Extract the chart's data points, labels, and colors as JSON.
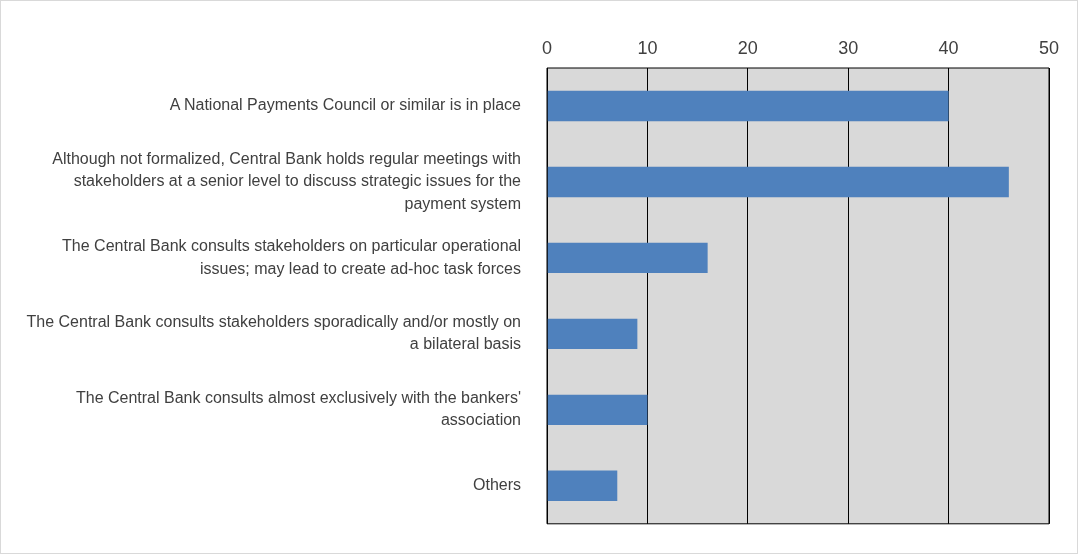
{
  "chart_data": {
    "type": "bar",
    "orientation": "horizontal",
    "categories": [
      "A National Payments Council or similar is in place",
      "Although not formalized, Central Bank holds regular meetings with stakeholders at a senior level to discuss strategic issues for the payment system",
      "The Central Bank consults stakeholders on particular operational issues; may lead to create ad-hoc task forces",
      "The Central Bank consults stakeholders sporadically and/or mostly on a bilateral basis",
      "The Central Bank consults almost exclusively with the bankers' association",
      "Others"
    ],
    "values": [
      40,
      46,
      16,
      9,
      10,
      7
    ],
    "color": "#4f81bd",
    "xlim": [
      0,
      50
    ],
    "xticks": [
      0,
      10,
      20,
      30,
      40,
      50
    ],
    "grid": "x",
    "legend": false
  }
}
